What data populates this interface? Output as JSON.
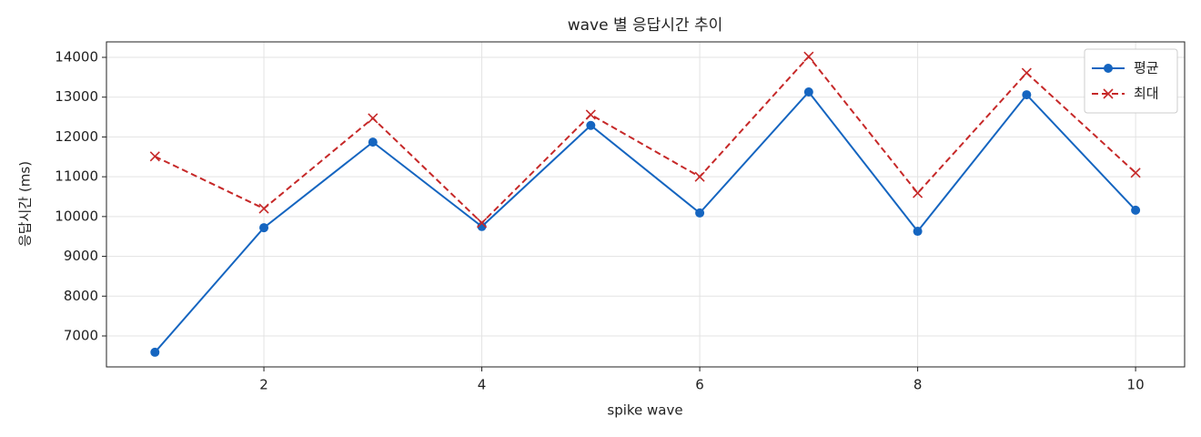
{
  "chart_data": {
    "type": "line",
    "title": "wave 별 응답시간 추이",
    "xlabel": "spike wave",
    "ylabel": "응답시간 (ms)",
    "x": [
      1,
      2,
      3,
      4,
      5,
      6,
      7,
      8,
      9,
      10
    ],
    "series": [
      {
        "name": "평균",
        "color": "#1565c0",
        "marker": "o",
        "linestyle": "solid",
        "values": [
          6590,
          9720,
          11870,
          9750,
          12290,
          10090,
          13130,
          9630,
          13060,
          10160
        ]
      },
      {
        "name": "최대",
        "color": "#c62828",
        "marker": "x",
        "linestyle": "dashed",
        "values": [
          11510,
          10200,
          12470,
          9840,
          12560,
          11000,
          14020,
          10590,
          13610,
          11100
        ]
      }
    ],
    "xlim": [
      0.555,
      10.45
    ],
    "xticks": [
      2,
      4,
      6,
      8,
      10
    ],
    "ylim": [
      6222,
      14389
    ],
    "yticks": [
      7000,
      8000,
      9000,
      10000,
      11000,
      12000,
      13000,
      14000
    ],
    "grid": true,
    "legend": "upper right"
  }
}
